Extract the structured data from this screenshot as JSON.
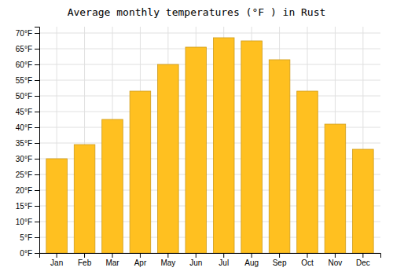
{
  "chart_data": {
    "type": "bar",
    "title": "Average monthly temperatures (°F ) in Rust",
    "categories": [
      "Jan",
      "Feb",
      "Mar",
      "Apr",
      "May",
      "Jun",
      "Jul",
      "Aug",
      "Sep",
      "Oct",
      "Nov",
      "Dec"
    ],
    "values": [
      30,
      34.5,
      42.5,
      51.5,
      60,
      65.5,
      68.5,
      67.5,
      61.5,
      51.5,
      41,
      33
    ],
    "color": "#FFC020",
    "ylim": [
      0,
      72
    ],
    "yticks": [
      {
        "value": 0,
        "label": "0°F"
      },
      {
        "value": 5,
        "label": "5°F"
      },
      {
        "value": 10,
        "label": "10°F"
      },
      {
        "value": 15,
        "label": "15°F"
      },
      {
        "value": 20,
        "label": "20°F"
      },
      {
        "value": 25,
        "label": "25°F"
      },
      {
        "value": 30,
        "label": "30°F"
      },
      {
        "value": 35,
        "label": "35°F"
      },
      {
        "value": 40,
        "label": "40°F"
      },
      {
        "value": 45,
        "label": "45°F"
      },
      {
        "value": 50,
        "label": "50°F"
      },
      {
        "value": 55,
        "label": "55°F"
      },
      {
        "value": 60,
        "label": "60°F"
      },
      {
        "value": 65,
        "label": "65°F"
      },
      {
        "value": 70,
        "label": "70°F"
      }
    ],
    "grid": true
  }
}
